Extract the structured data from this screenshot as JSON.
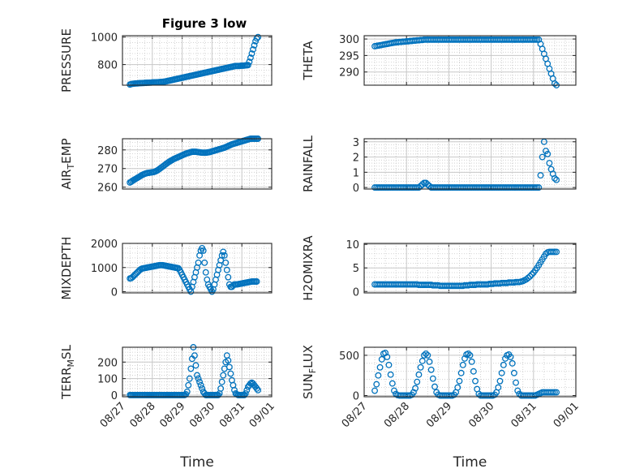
{
  "figure_title": "Figure 3 low",
  "colors": {
    "marker": "#0072BD",
    "axis": "#262626",
    "grid": "#c8c8c8"
  },
  "chart_data": [
    {
      "type": "scatter",
      "title": "Figure 3 low",
      "ylabel": "PRESSURE",
      "xlabel": "",
      "xlim": [
        "2019-08-27",
        "2019-09-01"
      ],
      "ylim": [
        650,
        1010
      ],
      "xticks": [
        "08/27",
        "08/28",
        "08/29",
        "08/30",
        "08/31",
        "09/01"
      ],
      "show_xticklabels": false,
      "yticks": [
        800,
        1000
      ],
      "grid": true,
      "x_start": "2019-08-27T06:00",
      "x_step_hours": 1,
      "y_hourly": [
        655,
        658,
        660,
        661,
        662,
        663,
        663,
        664,
        665,
        665,
        666,
        666,
        667,
        667,
        668,
        668,
        669,
        669,
        670,
        670,
        671,
        671,
        672,
        672,
        673,
        673,
        674,
        675,
        676,
        678,
        680,
        682,
        684,
        686,
        688,
        690,
        692,
        694,
        696,
        698,
        700,
        702,
        704,
        706,
        708,
        710,
        712,
        714,
        716,
        718,
        720,
        722,
        724,
        726,
        728,
        730,
        732,
        734,
        736,
        738,
        740,
        742,
        744,
        746,
        748,
        750,
        752,
        754,
        756,
        758,
        760,
        762,
        764,
        766,
        768,
        770,
        772,
        774,
        776,
        778,
        780,
        782,
        784,
        786,
        788,
        790,
        790,
        790,
        790,
        791,
        792,
        792,
        793,
        794,
        795,
        796,
        820,
        850,
        880,
        910,
        940,
        970,
        990,
        1000
      ]
    },
    {
      "type": "scatter",
      "title": "",
      "ylabel": "THETA",
      "xlabel": "",
      "xlim": [
        "2019-08-27",
        "2019-09-01"
      ],
      "ylim": [
        286,
        301
      ],
      "xticks": [
        "08/27",
        "08/28",
        "08/29",
        "08/30",
        "08/31",
        "09/01"
      ],
      "show_xticklabels": false,
      "yticks": [
        290,
        295,
        300
      ],
      "grid": true,
      "x_start": "2019-08-27T06:00",
      "x_step_hours": 1,
      "y_hourly": [
        297.8,
        297.9,
        298.0,
        298.1,
        298.2,
        298.3,
        298.4,
        298.5,
        298.6,
        298.7,
        298.8,
        298.9,
        299.0,
        299.0,
        299.1,
        299.1,
        299.2,
        299.2,
        299.3,
        299.3,
        299.4,
        299.4,
        299.5,
        299.5,
        299.6,
        299.6,
        299.7,
        299.7,
        299.8,
        299.8,
        299.8,
        299.8,
        299.8,
        299.8,
        299.8,
        299.8,
        299.8,
        299.8,
        299.8,
        299.8,
        299.8,
        299.8,
        299.8,
        299.8,
        299.8,
        299.8,
        299.8,
        299.8,
        299.8,
        299.8,
        299.8,
        299.8,
        299.8,
        299.8,
        299.8,
        299.8,
        299.8,
        299.8,
        299.8,
        299.8,
        299.8,
        299.8,
        299.8,
        299.8,
        299.8,
        299.8,
        299.8,
        299.8,
        299.8,
        299.8,
        299.8,
        299.8,
        299.8,
        299.8,
        299.8,
        299.8,
        299.8,
        299.8,
        299.8,
        299.8,
        299.8,
        299.8,
        299.8,
        299.8,
        299.8,
        299.8,
        299.8,
        299.8,
        299.8,
        299.8,
        299.8,
        299.8,
        299.8,
        299.8,
        298.5,
        297.0,
        295.5,
        294.0,
        292.5,
        291.0,
        289.5,
        288.0,
        286.5,
        286.0
      ]
    },
    {
      "type": "scatter",
      "title": "",
      "ylabel": "AIR_TEMP",
      "ylabel_sub": "T",
      "xlabel": "",
      "xlim": [
        "2019-08-27",
        "2019-09-01"
      ],
      "ylim": [
        259,
        286
      ],
      "xticks": [
        "08/27",
        "08/28",
        "08/29",
        "08/30",
        "08/31",
        "09/01"
      ],
      "show_xticklabels": false,
      "yticks": [
        260,
        270,
        280
      ],
      "grid": true,
      "x_start": "2019-08-27T06:00",
      "x_step_hours": 1,
      "y_hourly": [
        262.5,
        262.9,
        263.4,
        263.8,
        264.2,
        264.6,
        265.0,
        265.4,
        265.8,
        266.2,
        266.6,
        266.9,
        267.2,
        267.4,
        267.6,
        267.7,
        267.8,
        267.9,
        268.0,
        268.1,
        268.3,
        268.6,
        269.0,
        269.4,
        269.9,
        270.4,
        270.9,
        271.4,
        271.9,
        272.4,
        272.9,
        273.4,
        273.8,
        274.2,
        274.6,
        275.0,
        275.3,
        275.6,
        275.9,
        276.2,
        276.5,
        276.8,
        277.1,
        277.4,
        277.7,
        278.0,
        278.2,
        278.4,
        278.6,
        278.8,
        279.0,
        279.0,
        279.0,
        279.0,
        278.9,
        278.8,
        278.7,
        278.6,
        278.5,
        278.5,
        278.5,
        278.5,
        278.6,
        278.7,
        278.8,
        279.0,
        279.2,
        279.4,
        279.6,
        279.8,
        280.0,
        280.2,
        280.4,
        280.6,
        280.8,
        281.0,
        281.2,
        281.5,
        281.8,
        282.1,
        282.4,
        282.7,
        283.0,
        283.2,
        283.4,
        283.6,
        283.8,
        284.0,
        284.2,
        284.4,
        284.6,
        284.8,
        285.0,
        285.2,
        285.4,
        285.6,
        285.8,
        286.0,
        286.0,
        286.0,
        286.0,
        286.0,
        286.0,
        286.0
      ]
    },
    {
      "type": "scatter",
      "title": "",
      "ylabel": "RAINFALL",
      "xlabel": "",
      "xlim": [
        "2019-08-27",
        "2019-09-01"
      ],
      "ylim": [
        -0.1,
        3.2
      ],
      "xticks": [
        "08/27",
        "08/28",
        "08/29",
        "08/30",
        "08/31",
        "09/01"
      ],
      "show_xticklabels": false,
      "yticks": [
        0,
        1,
        2,
        3
      ],
      "grid": true,
      "x_start": "2019-08-27T06:00",
      "x_step_hours": 1,
      "y_hourly": [
        0,
        0,
        0,
        0,
        0,
        0,
        0,
        0,
        0,
        0,
        0,
        0,
        0,
        0,
        0,
        0,
        0,
        0,
        0,
        0,
        0,
        0,
        0,
        0,
        0,
        0,
        0.1,
        0.2,
        0.3,
        0.3,
        0.2,
        0.1,
        0,
        0,
        0,
        0,
        0,
        0,
        0,
        0,
        0,
        0,
        0,
        0,
        0,
        0,
        0,
        0,
        0,
        0,
        0,
        0,
        0,
        0,
        0,
        0,
        0,
        0,
        0,
        0,
        0,
        0,
        0,
        0,
        0,
        0,
        0,
        0,
        0,
        0,
        0,
        0,
        0,
        0,
        0,
        0,
        0,
        0,
        0,
        0,
        0,
        0,
        0,
        0,
        0,
        0,
        0,
        0,
        0,
        0,
        0,
        0,
        0,
        0,
        0.8,
        2.0,
        3.0,
        2.4,
        2.2,
        1.6,
        1.2,
        0.9,
        0.6,
        0.5
      ]
    },
    {
      "type": "scatter",
      "title": "",
      "ylabel": "MIXDEPTH",
      "xlabel": "",
      "xlim": [
        "2019-08-27",
        "2019-09-01"
      ],
      "ylim": [
        -50,
        2000
      ],
      "xticks": [
        "08/27",
        "08/28",
        "08/29",
        "08/30",
        "08/31",
        "09/01"
      ],
      "show_xticklabels": false,
      "yticks": [
        0,
        1000,
        2000
      ],
      "grid": true,
      "x_start": "2019-08-27T06:00",
      "x_step_hours": 1,
      "y_hourly": [
        550,
        560,
        600,
        650,
        700,
        750,
        800,
        850,
        900,
        940,
        960,
        970,
        980,
        990,
        1000,
        1010,
        1020,
        1030,
        1040,
        1050,
        1060,
        1070,
        1080,
        1090,
        1100,
        1100,
        1100,
        1090,
        1080,
        1070,
        1060,
        1050,
        1040,
        1030,
        1020,
        1010,
        1000,
        990,
        980,
        970,
        900,
        800,
        700,
        600,
        500,
        400,
        300,
        200,
        100,
        0,
        200,
        400,
        600,
        800,
        1000,
        1200,
        1500,
        1700,
        1800,
        1700,
        1200,
        800,
        500,
        300,
        200,
        100,
        0,
        100,
        300,
        500,
        700,
        900,
        1100,
        1300,
        1500,
        1650,
        1500,
        1200,
        900,
        600,
        300,
        200,
        200,
        250,
        300,
        300,
        300,
        310,
        320,
        330,
        340,
        350,
        360,
        370,
        380,
        390,
        400,
        410,
        420,
        420,
        420,
        420,
        420
      ]
    },
    {
      "type": "scatter",
      "title": "",
      "ylabel": "H2OMIXRA",
      "xlabel": "",
      "xlim": [
        "2019-08-27",
        "2019-09-01"
      ],
      "ylim": [
        -0.3,
        10.2
      ],
      "xticks": [
        "08/27",
        "08/28",
        "08/29",
        "08/30",
        "08/31",
        "09/01"
      ],
      "show_xticklabels": false,
      "yticks": [
        0,
        5,
        10
      ],
      "grid": true,
      "x_start": "2019-08-27T06:00",
      "x_step_hours": 1,
      "y_hourly": [
        1.5,
        1.5,
        1.5,
        1.5,
        1.5,
        1.5,
        1.5,
        1.5,
        1.5,
        1.5,
        1.5,
        1.5,
        1.5,
        1.5,
        1.5,
        1.5,
        1.5,
        1.5,
        1.5,
        1.5,
        1.5,
        1.5,
        1.5,
        1.5,
        1.5,
        1.4,
        1.4,
        1.4,
        1.4,
        1.4,
        1.4,
        1.4,
        1.4,
        1.3,
        1.3,
        1.3,
        1.3,
        1.2,
        1.2,
        1.2,
        1.2,
        1.2,
        1.2,
        1.2,
        1.2,
        1.2,
        1.2,
        1.2,
        1.2,
        1.2,
        1.2,
        1.3,
        1.3,
        1.3,
        1.4,
        1.4,
        1.4,
        1.4,
        1.5,
        1.5,
        1.5,
        1.5,
        1.5,
        1.5,
        1.5,
        1.6,
        1.6,
        1.6,
        1.7,
        1.7,
        1.7,
        1.7,
        1.8,
        1.8,
        1.8,
        1.8,
        1.9,
        1.9,
        1.9,
        1.9,
        2.0,
        2.0,
        2.0,
        2.1,
        2.2,
        2.4,
        2.6,
        2.9,
        3.2,
        3.6,
        4.0,
        4.5,
        5.0,
        5.6,
        6.2,
        6.8,
        7.4,
        8.0,
        8.3,
        8.4,
        8.4,
        8.4,
        8.4,
        8.4
      ]
    },
    {
      "type": "scatter",
      "title": "",
      "ylabel": "TERR_MSL",
      "ylabel_sub": "M",
      "xlabel": "Time",
      "xlim": [
        "2019-08-27",
        "2019-09-01"
      ],
      "ylim": [
        -10,
        290
      ],
      "xticks": [
        "08/27",
        "08/28",
        "08/29",
        "08/30",
        "08/31",
        "09/01"
      ],
      "show_xticklabels": true,
      "yticks": [
        0,
        100,
        200
      ],
      "grid": true,
      "x_start": "2019-08-27T06:00",
      "x_step_hours": 1,
      "y_hourly": [
        0,
        0,
        0,
        0,
        0,
        0,
        0,
        0,
        0,
        0,
        0,
        0,
        0,
        0,
        0,
        0,
        0,
        0,
        0,
        0,
        0,
        0,
        0,
        0,
        0,
        0,
        0,
        0,
        0,
        0,
        0,
        0,
        0,
        0,
        0,
        0,
        0,
        0,
        0,
        0,
        0,
        0,
        0,
        0,
        0,
        5,
        20,
        60,
        100,
        160,
        220,
        290,
        240,
        180,
        120,
        100,
        80,
        60,
        40,
        20,
        10,
        0,
        0,
        0,
        0,
        0,
        0,
        0,
        0,
        0,
        0,
        0,
        10,
        40,
        80,
        120,
        160,
        200,
        240,
        210,
        170,
        130,
        90,
        60,
        30,
        10,
        5,
        0,
        0,
        0,
        0,
        0,
        0,
        10,
        30,
        50,
        60,
        70,
        75,
        70,
        60,
        50,
        40,
        30
      ]
    },
    {
      "type": "scatter",
      "title": "",
      "ylabel": "SUN_FLUX",
      "ylabel_sub": "F",
      "xlabel": "Time",
      "xlim": [
        "2019-08-27",
        "2019-09-01"
      ],
      "ylim": [
        -15,
        600
      ],
      "xticks": [
        "08/27",
        "08/28",
        "08/29",
        "08/30",
        "08/31",
        "09/01"
      ],
      "show_xticklabels": true,
      "yticks": [
        0,
        500
      ],
      "grid": true,
      "x_start": "2019-08-27T06:00",
      "x_step_hours": 1,
      "y_hourly": [
        60,
        140,
        250,
        350,
        450,
        520,
        530,
        480,
        380,
        260,
        150,
        60,
        20,
        5,
        0,
        0,
        0,
        0,
        0,
        0,
        0,
        10,
        40,
        90,
        170,
        260,
        350,
        430,
        500,
        520,
        500,
        420,
        320,
        210,
        110,
        40,
        10,
        0,
        0,
        0,
        0,
        0,
        0,
        0,
        0,
        10,
        40,
        100,
        180,
        280,
        380,
        460,
        510,
        520,
        500,
        420,
        300,
        180,
        80,
        20,
        0,
        0,
        0,
        0,
        0,
        0,
        0,
        0,
        10,
        40,
        100,
        180,
        280,
        380,
        460,
        500,
        510,
        480,
        400,
        280,
        160,
        60,
        20,
        0,
        0,
        0,
        0,
        0,
        0,
        0,
        0,
        0,
        10,
        20,
        30,
        40,
        40,
        40,
        40,
        40,
        40,
        40,
        40,
        40
      ]
    }
  ]
}
